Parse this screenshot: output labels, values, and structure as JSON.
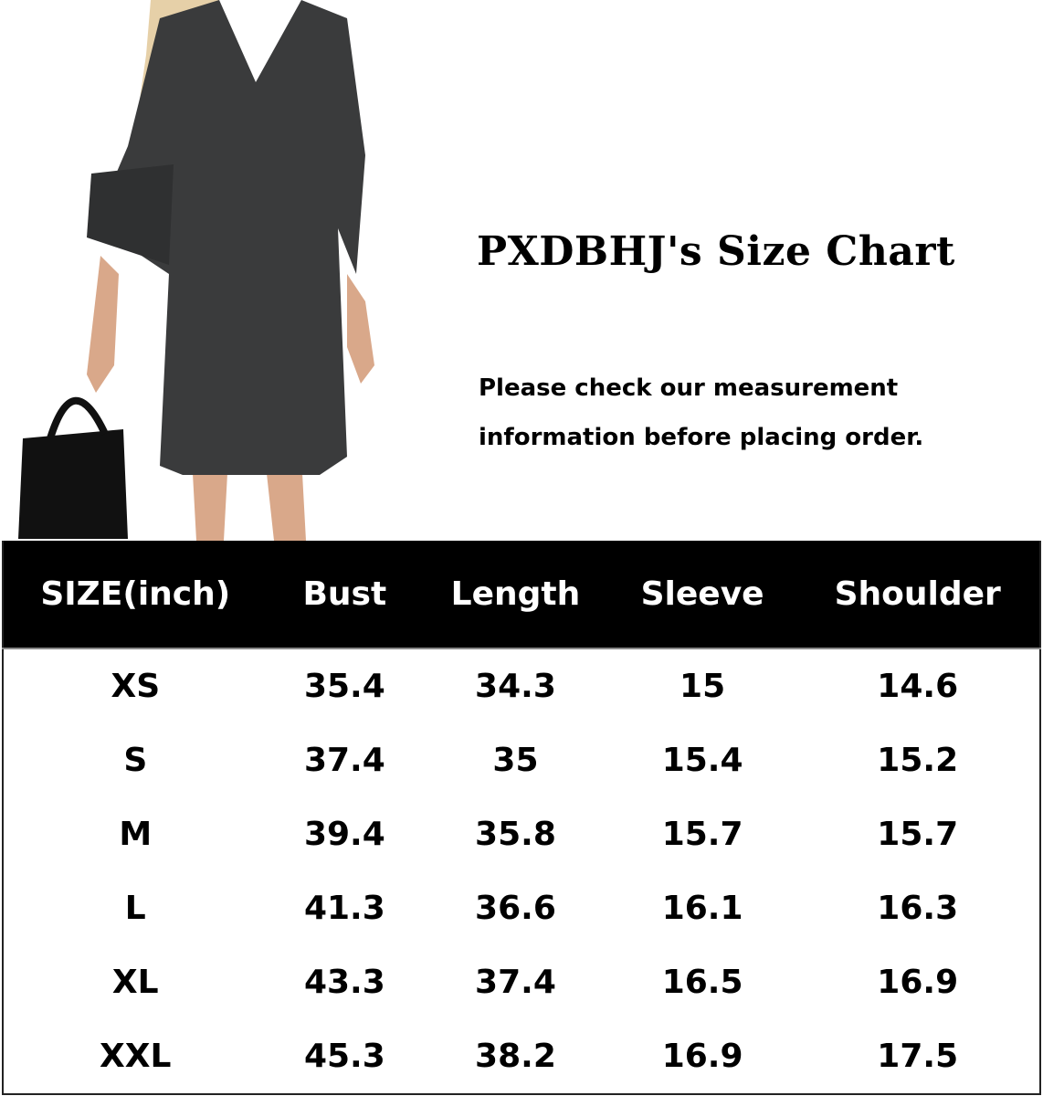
{
  "title": "PXDBHJ's Size Chart",
  "note_lines": [
    "Please check our measurement",
    "information before placing order."
  ],
  "table": {
    "headers": [
      "SIZE(inch)",
      "Bust",
      "Length",
      "Sleeve",
      "Shoulder"
    ],
    "rows": [
      [
        "XS",
        "35.4",
        "34.3",
        "15",
        "14.6"
      ],
      [
        "S",
        "37.4",
        "35",
        "15.4",
        "15.2"
      ],
      [
        "M",
        "39.4",
        "35.8",
        "15.7",
        "15.7"
      ],
      [
        "L",
        "41.3",
        "36.6",
        "16.1",
        "16.3"
      ],
      [
        "XL",
        "43.3",
        "37.4",
        "16.5",
        "16.9"
      ],
      [
        "XXL",
        "45.3",
        "38.2",
        "16.9",
        "17.5"
      ]
    ]
  },
  "colors": {
    "dress": "#3a3b3c",
    "header_bg": "#000000",
    "skin": "#d9a88a",
    "hair": "#e8d3ae"
  }
}
